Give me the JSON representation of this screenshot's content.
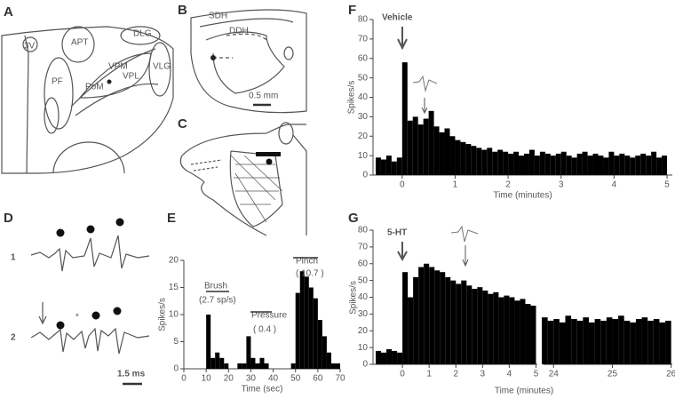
{
  "panel_labels": [
    "A",
    "B",
    "C",
    "D",
    "E",
    "F",
    "G"
  ],
  "panel_a": {
    "labels": [
      "3V",
      "APT",
      "DLG",
      "PF",
      "PoM",
      "VPM",
      "VPL",
      "VLG"
    ]
  },
  "panel_b": {
    "labels": [
      "SDH",
      "DDH"
    ],
    "scale_bar": "0.5 mm"
  },
  "panel_d": {
    "trace_labels": [
      "1",
      "2"
    ],
    "asterisk": "*",
    "scale_bar": "1.5 ms"
  },
  "chart_data": [
    {
      "type": "histogram",
      "color": "#000000",
      "x_label": "Time (sec)",
      "y_label": "Spikes/s",
      "annotations": [
        "Brush",
        "(2.7 sp/s)",
        "Pressure",
        "( 0.4 )",
        "Pinch",
        "( 10.7 )"
      ],
      "bins": [
        0,
        2,
        4,
        6,
        8,
        10,
        12,
        14,
        16,
        18,
        20,
        22,
        24,
        26,
        28,
        30,
        32,
        34,
        36,
        38,
        40,
        42,
        44,
        46,
        48,
        50,
        52,
        54,
        56,
        58,
        60,
        62,
        64,
        66,
        68,
        70
      ],
      "values": [
        0,
        0,
        0,
        0,
        0,
        10,
        2,
        3,
        2,
        1,
        0,
        0,
        1,
        1,
        6,
        2,
        1,
        2,
        1,
        0,
        0,
        0,
        0,
        0,
        1,
        14,
        18,
        17,
        15,
        13,
        9,
        6,
        3,
        1,
        1
      ],
      "xlim": [
        0,
        70
      ],
      "ylim": [
        0,
        20
      ],
      "xticks": [
        0,
        10,
        20,
        30,
        40,
        50,
        60,
        70
      ],
      "yticks": [
        0,
        5,
        10,
        15,
        20
      ]
    },
    {
      "type": "histogram",
      "color": "#000000",
      "title": "Vehicle",
      "x_label": "Time (minutes)",
      "y_label": "Spikes/s",
      "bins": [
        -0.5,
        -0.4,
        -0.3,
        -0.2,
        -0.1,
        0,
        0.1,
        0.2,
        0.3,
        0.4,
        0.5,
        0.6,
        0.7,
        0.8,
        0.9,
        1,
        1.1,
        1.2,
        1.3,
        1.4,
        1.5,
        1.6,
        1.7,
        1.8,
        1.9,
        2,
        2.1,
        2.2,
        2.3,
        2.4,
        2.5,
        2.6,
        2.7,
        2.8,
        2.9,
        3,
        3.1,
        3.2,
        3.3,
        3.4,
        3.5,
        3.6,
        3.7,
        3.8,
        3.9,
        4,
        4.1,
        4.2,
        4.3,
        4.4,
        4.5,
        4.6,
        4.7,
        4.8,
        4.9,
        5
      ],
      "values": [
        9,
        8,
        10,
        7,
        9,
        58,
        28,
        30,
        26,
        29,
        33,
        25,
        22,
        24,
        20,
        18,
        17,
        16,
        15,
        14,
        13,
        14,
        12,
        13,
        12,
        11,
        12,
        10,
        11,
        13,
        10,
        12,
        11,
        10,
        11,
        12,
        10,
        9,
        11,
        12,
        10,
        11,
        10,
        9,
        12,
        10,
        11,
        10,
        9,
        10,
        11,
        10,
        12,
        9,
        10
      ],
      "xlim": [
        -0.55,
        5.1
      ],
      "ylim": [
        0,
        80
      ],
      "xticks": [
        0,
        1,
        2,
        3,
        4,
        5
      ],
      "yticks": [
        0,
        10,
        20,
        30,
        40,
        50,
        60,
        70,
        80
      ]
    },
    {
      "type": "broken-histogram",
      "color": "#000000",
      "title": "5-HT",
      "x_label": "Time (minutes)",
      "y_label": "Spikes/s",
      "ylim": [
        0,
        80
      ],
      "yticks": [
        0,
        10,
        20,
        30,
        40,
        50,
        60,
        70,
        80
      ],
      "segments": [
        {
          "xlim": [
            -1.1,
            5.05
          ],
          "xticks": [
            0,
            1,
            2,
            3,
            4,
            5
          ],
          "bins": [
            -1,
            -0.8,
            -0.6,
            -0.4,
            -0.2,
            0,
            0.2,
            0.4,
            0.6,
            0.8,
            1,
            1.2,
            1.4,
            1.6,
            1.8,
            2,
            2.2,
            2.4,
            2.6,
            2.8,
            3,
            3.2,
            3.4,
            3.6,
            3.8,
            4,
            4.2,
            4.4,
            4.6,
            4.8,
            5
          ],
          "values": [
            8,
            7,
            9,
            8,
            7,
            55,
            40,
            52,
            58,
            60,
            58,
            56,
            55,
            52,
            50,
            48,
            50,
            47,
            45,
            46,
            44,
            42,
            43,
            40,
            41,
            40,
            38,
            39,
            36,
            35
          ]
        },
        {
          "xlim": [
            23.83,
            26.02
          ],
          "xticks": [
            24,
            25,
            26
          ],
          "bins": [
            23.8,
            23.9,
            24,
            24.1,
            24.2,
            24.3,
            24.4,
            24.5,
            24.6,
            24.7,
            24.8,
            24.9,
            25,
            25.1,
            25.2,
            25.3,
            25.4,
            25.5,
            25.6,
            25.7,
            25.8,
            25.9,
            26
          ],
          "values": [
            28,
            26,
            27,
            25,
            29,
            27,
            26,
            28,
            25,
            27,
            26,
            28,
            27,
            29,
            26,
            25,
            27,
            28,
            26,
            27,
            25,
            26
          ]
        }
      ]
    }
  ]
}
